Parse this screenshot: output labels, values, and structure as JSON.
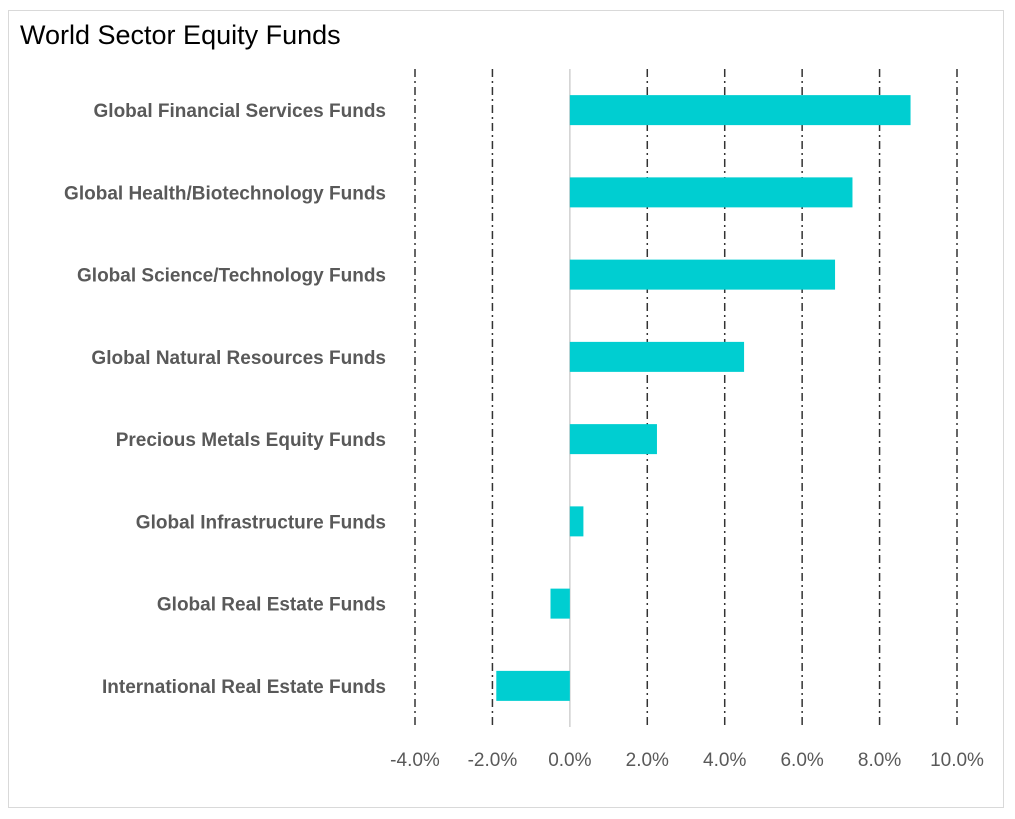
{
  "chart_data": {
    "type": "bar",
    "orientation": "horizontal",
    "title": "World Sector Equity Funds",
    "categories": [
      "Global Financial Services Funds",
      "Global Health/Biotechnology Funds",
      "Global Science/Technology Funds",
      "Global Natural Resources Funds",
      "Precious Metals Equity Funds",
      "Global Infrastructure Funds",
      "Global Real Estate Funds",
      "International Real Estate Funds"
    ],
    "values": [
      8.8,
      7.3,
      6.85,
      4.5,
      2.25,
      0.35,
      -0.5,
      -1.9
    ],
    "xlim": [
      -4,
      10
    ],
    "xticks": [
      -4,
      -2,
      0,
      2,
      4,
      6,
      8,
      10
    ],
    "xtick_labels": [
      "-4.0%",
      "-2.0%",
      "0.0%",
      "2.0%",
      "4.0%",
      "6.0%",
      "8.0%",
      "10.0%"
    ],
    "gridlines": "vertical dash-dot",
    "xlabel": "",
    "ylabel": "",
    "legend": "none",
    "bar_color": "#00CED1"
  }
}
